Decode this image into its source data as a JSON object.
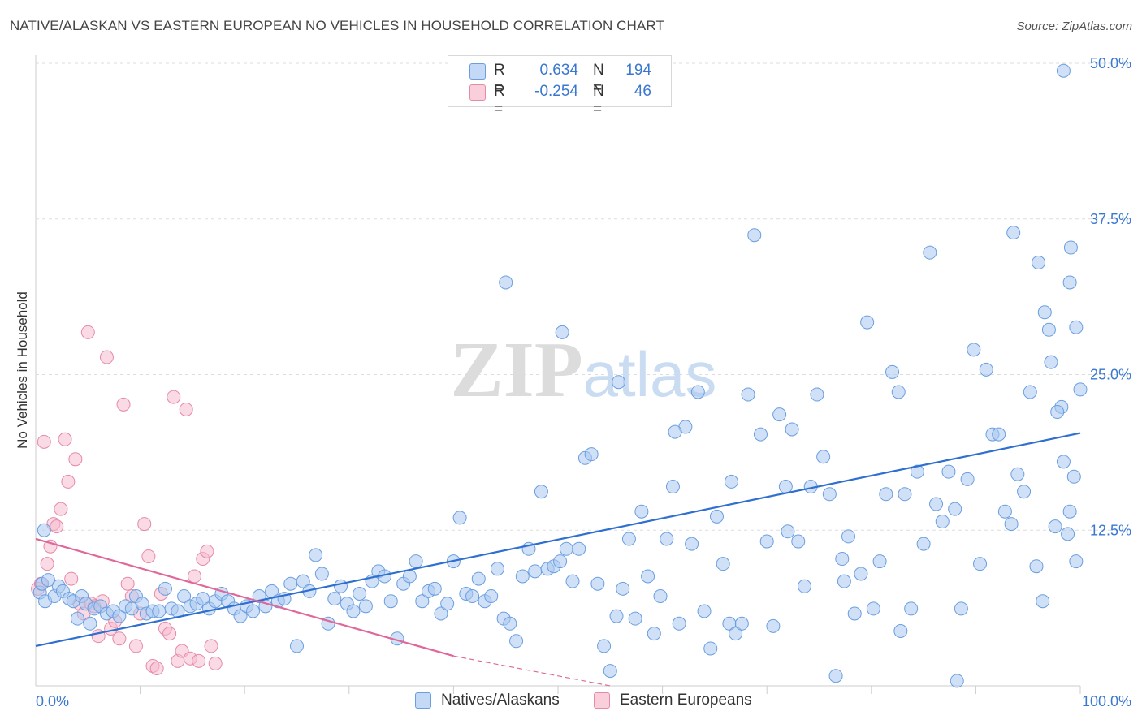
{
  "title": "NATIVE/ALASKAN VS EASTERN EUROPEAN NO VEHICLES IN HOUSEHOLD CORRELATION CHART",
  "source": "Source: ZipAtlas.com",
  "watermark": {
    "zip": "ZIP",
    "atlas": "atlas"
  },
  "legend": {
    "rows": [
      {
        "r_label": "R =",
        "r_value": "0.634",
        "n_label": "N =",
        "n_value": "194"
      },
      {
        "r_label": "R =",
        "r_value": "-0.254",
        "n_label": "N =",
        "n_value": "46"
      }
    ]
  },
  "bottom_legend": [
    "Natives/Alaskans",
    "Eastern Europeans"
  ],
  "colors": {
    "blue_fill": "#a9c8f0",
    "blue_stroke": "#6a9ee0",
    "blue_line": "#2e6fd0",
    "pink_fill": "#f6bccd",
    "pink_stroke": "#e68aa6",
    "pink_line": "#e0679a",
    "tick_label": "#3a78d0"
  },
  "chart_data": {
    "type": "scatter",
    "title": "NATIVE/ALASKAN VS EASTERN EUROPEAN NO VEHICLES IN HOUSEHOLD CORRELATION CHART",
    "xlabel": "",
    "ylabel": "No Vehicles in Household",
    "xlim": [
      0,
      100
    ],
    "ylim": [
      0,
      50
    ],
    "x_tick_labels": [
      "0.0%",
      "100.0%"
    ],
    "y_ticks": [
      12.5,
      25.0,
      37.5,
      50.0
    ],
    "y_tick_labels": [
      "12.5%",
      "25.0%",
      "37.5%",
      "50.0%"
    ],
    "grid": true,
    "legend_position": "top-center",
    "series": [
      {
        "name": "Natives/Alaskans",
        "r": 0.634,
        "n": 194,
        "trend": {
          "x": [
            0,
            100
          ],
          "y": [
            3.2,
            20.3
          ]
        },
        "points": [
          [
            0.8,
            12.5
          ],
          [
            0.4,
            7.5
          ],
          [
            0.6,
            8.2
          ],
          [
            0.9,
            6.8
          ],
          [
            1.2,
            8.5
          ],
          [
            1.8,
            7.2
          ],
          [
            2.2,
            8.0
          ],
          [
            2.6,
            7.6
          ],
          [
            3.2,
            7.0
          ],
          [
            3.6,
            6.8
          ],
          [
            4.0,
            5.4
          ],
          [
            4.4,
            7.2
          ],
          [
            4.8,
            6.6
          ],
          [
            5.2,
            5.0
          ],
          [
            5.6,
            6.2
          ],
          [
            6.2,
            6.4
          ],
          [
            6.8,
            5.8
          ],
          [
            7.4,
            6.0
          ],
          [
            8.0,
            5.6
          ],
          [
            8.6,
            6.4
          ],
          [
            9.2,
            6.2
          ],
          [
            9.6,
            7.2
          ],
          [
            10.2,
            6.6
          ],
          [
            10.6,
            5.8
          ],
          [
            11.2,
            6.0
          ],
          [
            11.8,
            6.0
          ],
          [
            12.4,
            7.8
          ],
          [
            13.0,
            6.2
          ],
          [
            13.6,
            6.0
          ],
          [
            14.2,
            7.2
          ],
          [
            14.8,
            6.4
          ],
          [
            15.4,
            6.6
          ],
          [
            16.0,
            7.0
          ],
          [
            16.6,
            6.2
          ],
          [
            17.2,
            6.8
          ],
          [
            17.8,
            7.4
          ],
          [
            18.4,
            6.8
          ],
          [
            19.0,
            6.2
          ],
          [
            19.6,
            5.6
          ],
          [
            20.2,
            6.4
          ],
          [
            20.8,
            6.0
          ],
          [
            21.4,
            7.2
          ],
          [
            22.0,
            6.4
          ],
          [
            22.6,
            7.6
          ],
          [
            23.2,
            6.8
          ],
          [
            23.8,
            7.0
          ],
          [
            24.4,
            8.2
          ],
          [
            25.0,
            3.2
          ],
          [
            25.6,
            8.4
          ],
          [
            26.2,
            7.6
          ],
          [
            26.8,
            10.5
          ],
          [
            27.4,
            9.0
          ],
          [
            28.0,
            5.0
          ],
          [
            28.6,
            7.0
          ],
          [
            29.2,
            8.0
          ],
          [
            29.8,
            6.6
          ],
          [
            30.4,
            6.0
          ],
          [
            31.0,
            7.4
          ],
          [
            31.6,
            6.4
          ],
          [
            32.2,
            8.4
          ],
          [
            32.8,
            9.2
          ],
          [
            33.4,
            8.8
          ],
          [
            34.0,
            6.8
          ],
          [
            34.6,
            3.8
          ],
          [
            35.2,
            8.2
          ],
          [
            35.8,
            8.8
          ],
          [
            36.4,
            10.0
          ],
          [
            37.0,
            6.8
          ],
          [
            37.6,
            7.6
          ],
          [
            38.2,
            7.8
          ],
          [
            38.8,
            5.8
          ],
          [
            39.4,
            6.6
          ],
          [
            40.0,
            10.0
          ],
          [
            40.6,
            13.5
          ],
          [
            41.2,
            7.4
          ],
          [
            41.8,
            7.2
          ],
          [
            42.4,
            8.6
          ],
          [
            43.0,
            6.8
          ],
          [
            43.6,
            7.2
          ],
          [
            44.2,
            9.4
          ],
          [
            44.8,
            5.4
          ],
          [
            45.4,
            5.0
          ],
          [
            46.0,
            3.6
          ],
          [
            46.6,
            8.8
          ],
          [
            47.2,
            11.0
          ],
          [
            47.8,
            9.2
          ],
          [
            48.4,
            15.6
          ],
          [
            49.0,
            9.4
          ],
          [
            49.6,
            9.6
          ],
          [
            50.2,
            10.0
          ],
          [
            50.8,
            11.0
          ],
          [
            51.4,
            8.4
          ],
          [
            52.0,
            11.0
          ],
          [
            52.6,
            18.3
          ],
          [
            53.2,
            18.6
          ],
          [
            53.8,
            8.2
          ],
          [
            54.4,
            3.2
          ],
          [
            55.0,
            1.2
          ],
          [
            55.6,
            5.6
          ],
          [
            56.2,
            7.8
          ],
          [
            56.8,
            11.8
          ],
          [
            57.4,
            5.4
          ],
          [
            58.0,
            14.0
          ],
          [
            58.6,
            8.8
          ],
          [
            59.2,
            4.2
          ],
          [
            59.8,
            7.2
          ],
          [
            60.4,
            11.8
          ],
          [
            61.0,
            16.0
          ],
          [
            61.6,
            5.0
          ],
          [
            62.2,
            20.8
          ],
          [
            62.8,
            11.4
          ],
          [
            63.4,
            23.6
          ],
          [
            64.0,
            6.0
          ],
          [
            64.6,
            3.0
          ],
          [
            65.2,
            13.6
          ],
          [
            65.8,
            9.8
          ],
          [
            66.4,
            5.0
          ],
          [
            67.0,
            4.2
          ],
          [
            67.6,
            5.0
          ],
          [
            68.2,
            23.4
          ],
          [
            68.8,
            36.2
          ],
          [
            69.4,
            20.2
          ],
          [
            70.0,
            11.6
          ],
          [
            70.6,
            4.8
          ],
          [
            71.2,
            21.8
          ],
          [
            71.8,
            16.0
          ],
          [
            72.4,
            20.6
          ],
          [
            73.0,
            11.6
          ],
          [
            73.6,
            8.0
          ],
          [
            74.2,
            16.0
          ],
          [
            74.8,
            23.4
          ],
          [
            75.4,
            18.4
          ],
          [
            76.0,
            15.4
          ],
          [
            76.6,
            0.8
          ],
          [
            77.2,
            10.2
          ],
          [
            77.8,
            12.0
          ],
          [
            78.4,
            5.8
          ],
          [
            79.0,
            9.0
          ],
          [
            79.6,
            29.2
          ],
          [
            80.2,
            6.2
          ],
          [
            80.8,
            10.0
          ],
          [
            81.4,
            15.4
          ],
          [
            82.0,
            25.2
          ],
          [
            82.6,
            23.6
          ],
          [
            83.2,
            15.4
          ],
          [
            83.8,
            6.2
          ],
          [
            84.4,
            17.2
          ],
          [
            85.0,
            11.4
          ],
          [
            85.6,
            34.8
          ],
          [
            86.2,
            14.6
          ],
          [
            86.8,
            13.2
          ],
          [
            87.4,
            17.2
          ],
          [
            88.0,
            14.2
          ],
          [
            88.6,
            6.2
          ],
          [
            89.2,
            16.6
          ],
          [
            89.8,
            27.0
          ],
          [
            90.4,
            9.8
          ],
          [
            91.0,
            25.4
          ],
          [
            91.6,
            20.2
          ],
          [
            92.2,
            20.2
          ],
          [
            92.8,
            14.0
          ],
          [
            93.4,
            13.0
          ],
          [
            94.0,
            17.0
          ],
          [
            94.6,
            15.6
          ],
          [
            95.2,
            23.6
          ],
          [
            95.8,
            9.6
          ],
          [
            96.4,
            6.8
          ],
          [
            97.0,
            28.6
          ],
          [
            97.6,
            12.8
          ],
          [
            98.2,
            22.4
          ],
          [
            98.8,
            12.2
          ],
          [
            99.4,
            16.8
          ],
          [
            100.0,
            23.8
          ],
          [
            96.0,
            34.0
          ],
          [
            96.6,
            30.0
          ],
          [
            97.2,
            26.0
          ],
          [
            97.8,
            22.0
          ],
          [
            98.4,
            18.0
          ],
          [
            99.0,
            14.0
          ],
          [
            99.6,
            10.0
          ],
          [
            45.0,
            32.4
          ],
          [
            50.4,
            28.4
          ],
          [
            55.8,
            24.4
          ],
          [
            61.2,
            20.4
          ],
          [
            66.6,
            16.4
          ],
          [
            72.0,
            12.4
          ],
          [
            77.4,
            8.4
          ],
          [
            82.8,
            4.4
          ],
          [
            88.2,
            0.4
          ],
          [
            93.6,
            36.4
          ],
          [
            99.0,
            32.4
          ],
          [
            98.4,
            49.4
          ],
          [
            99.1,
            35.2
          ],
          [
            99.6,
            28.8
          ]
        ]
      },
      {
        "name": "Eastern Europeans",
        "r": -0.254,
        "n": 46,
        "trend": {
          "x": [
            0,
            40
          ],
          "y": [
            11.8,
            2.4
          ]
        },
        "trend_dashed": {
          "x": [
            40,
            55
          ],
          "y": [
            2.4,
            -1.2
          ]
        },
        "points": [
          [
            0.2,
            7.8
          ],
          [
            0.5,
            8.2
          ],
          [
            0.8,
            19.6
          ],
          [
            1.1,
            9.8
          ],
          [
            1.4,
            11.2
          ],
          [
            1.7,
            13.0
          ],
          [
            2.0,
            12.8
          ],
          [
            2.4,
            14.2
          ],
          [
            2.8,
            19.8
          ],
          [
            3.1,
            16.4
          ],
          [
            3.4,
            8.6
          ],
          [
            3.8,
            18.2
          ],
          [
            4.2,
            6.6
          ],
          [
            4.6,
            5.8
          ],
          [
            5.0,
            28.4
          ],
          [
            5.3,
            6.6
          ],
          [
            5.6,
            6.4
          ],
          [
            6.0,
            4.0
          ],
          [
            6.4,
            6.8
          ],
          [
            6.8,
            26.4
          ],
          [
            7.2,
            4.6
          ],
          [
            7.6,
            5.2
          ],
          [
            8.0,
            3.8
          ],
          [
            8.4,
            22.6
          ],
          [
            8.8,
            8.2
          ],
          [
            9.2,
            7.2
          ],
          [
            9.6,
            3.2
          ],
          [
            10.0,
            5.8
          ],
          [
            10.4,
            13.0
          ],
          [
            10.8,
            10.4
          ],
          [
            11.2,
            1.6
          ],
          [
            11.6,
            1.4
          ],
          [
            12.0,
            7.4
          ],
          [
            12.4,
            4.6
          ],
          [
            12.8,
            4.2
          ],
          [
            13.2,
            23.2
          ],
          [
            13.6,
            2.0
          ],
          [
            14.0,
            2.8
          ],
          [
            14.4,
            22.2
          ],
          [
            14.8,
            2.2
          ],
          [
            15.2,
            8.8
          ],
          [
            15.6,
            2.0
          ],
          [
            16.0,
            10.2
          ],
          [
            16.4,
            10.8
          ],
          [
            16.8,
            3.2
          ],
          [
            17.2,
            1.8
          ]
        ]
      }
    ]
  }
}
